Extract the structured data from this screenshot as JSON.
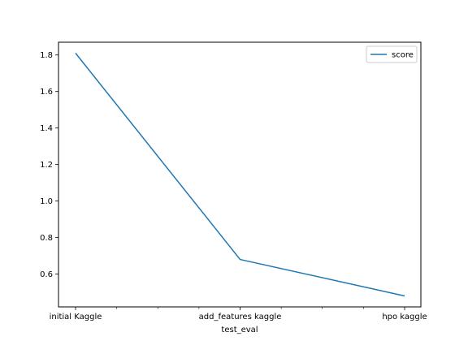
{
  "chart_data": {
    "type": "line",
    "categories": [
      "initial Kaggle",
      "add_features kaggle",
      "hpo kaggle"
    ],
    "series": [
      {
        "name": "score",
        "values": [
          1.81,
          0.68,
          0.48
        ],
        "color": "#1f77b4"
      }
    ],
    "xlabel": "test_eval",
    "ylabel": "",
    "ylim": [
      0.42,
      1.87
    ],
    "yticks": [
      0.6,
      0.8,
      1.0,
      1.2,
      1.4,
      1.6,
      1.8
    ],
    "ytick_labels": [
      "0.6",
      "0.8",
      "1.0",
      "1.2",
      "1.4",
      "1.6",
      "1.8"
    ],
    "minor_xticks_between_categories": 3,
    "grid": false,
    "legend": {
      "placement": "top-right",
      "entries": [
        "score"
      ]
    }
  }
}
